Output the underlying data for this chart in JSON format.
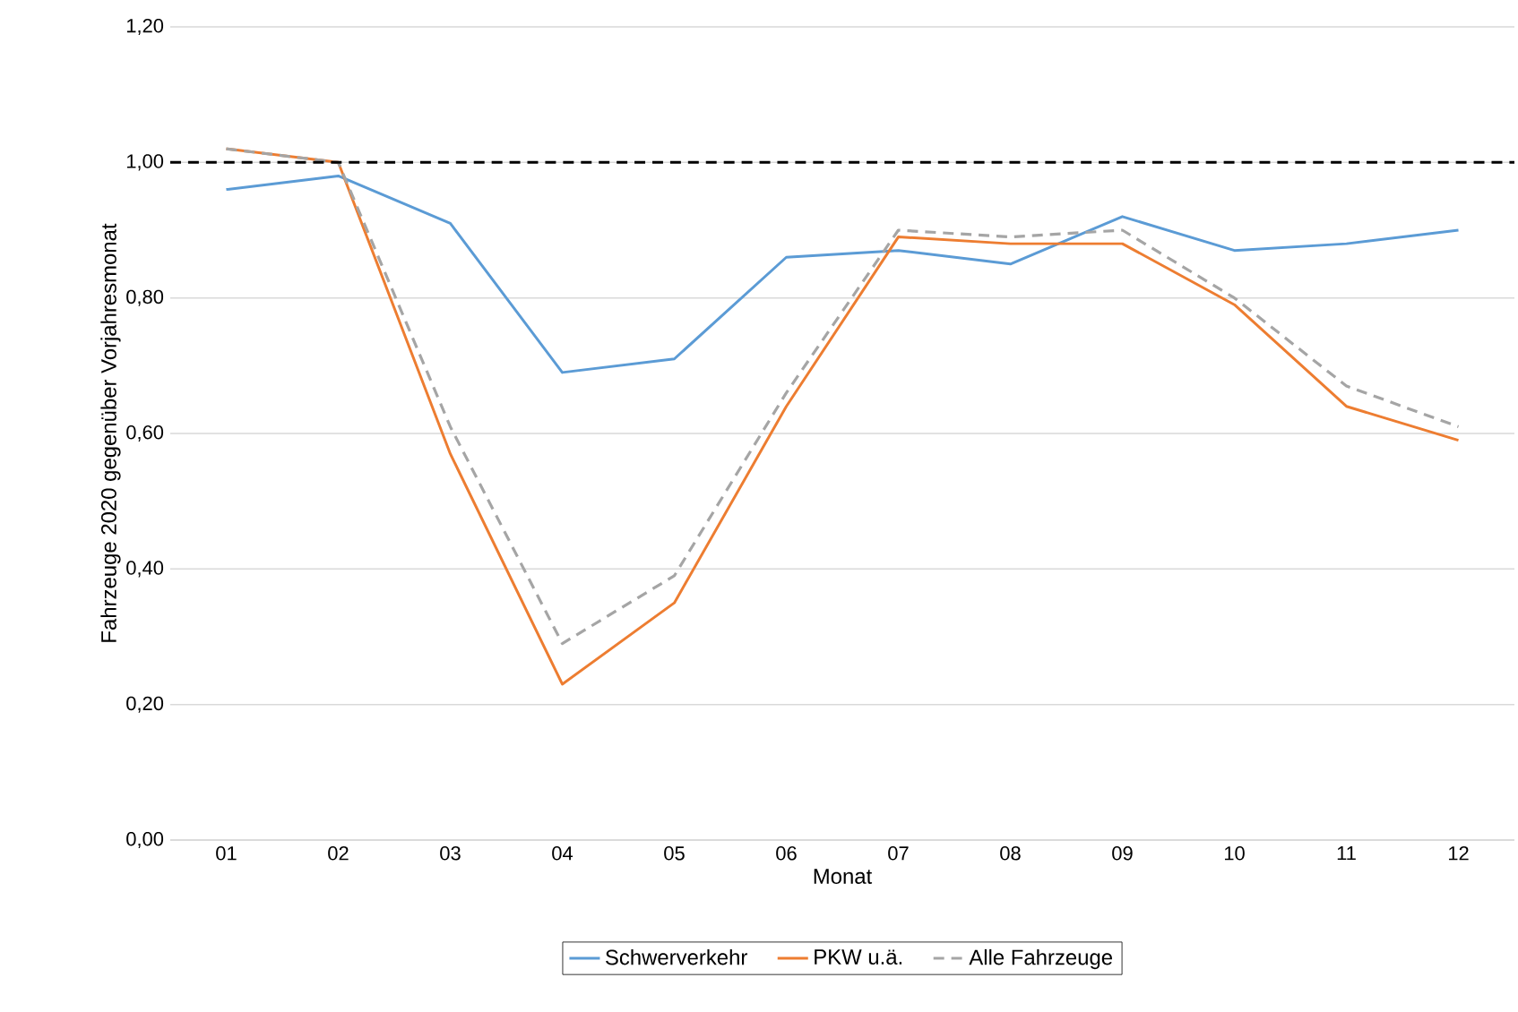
{
  "chart_data": {
    "type": "line",
    "xlabel": "Monat",
    "ylabel": "Fahrzeuge 2020 gegenüber Vorjahresmonat",
    "categories": [
      "01",
      "02",
      "03",
      "04",
      "05",
      "06",
      "07",
      "08",
      "09",
      "10",
      "11",
      "12"
    ],
    "series": [
      {
        "name": "Schwerverkehr",
        "color": "#5b9bd5",
        "line_style": "solid",
        "values": [
          0.96,
          0.98,
          0.91,
          0.69,
          0.71,
          0.86,
          0.87,
          0.85,
          0.92,
          0.87,
          0.88,
          0.9
        ]
      },
      {
        "name": "PKW u.ä.",
        "color": "#ed7d31",
        "line_style": "solid",
        "values": [
          1.02,
          1.0,
          0.57,
          0.23,
          0.35,
          0.64,
          0.89,
          0.88,
          0.88,
          0.79,
          0.64,
          0.59
        ]
      },
      {
        "name": "Alle Fahrzeuge",
        "color": "#a5a5a5",
        "line_style": "dashed",
        "values": [
          1.02,
          1.0,
          0.61,
          0.29,
          0.39,
          0.66,
          0.9,
          0.89,
          0.9,
          0.8,
          0.67,
          0.61
        ]
      }
    ],
    "ylim": [
      0,
      1.2
    ],
    "yticks": [
      {
        "value": 0,
        "label": "0,00"
      },
      {
        "value": 0.2,
        "label": "0,20"
      },
      {
        "value": 0.4,
        "label": "0,40"
      },
      {
        "value": 0.6,
        "label": "0,60"
      },
      {
        "value": 0.8,
        "label": "0,80"
      },
      {
        "value": 1.0,
        "label": "1,00"
      },
      {
        "value": 1.2,
        "label": "1,20"
      }
    ],
    "ref_lines": [
      {
        "axis": "y",
        "value": 1.0,
        "color": "#000000",
        "line_style": "dashed"
      }
    ],
    "grid": "y",
    "legend": "bottom",
    "marker": "none"
  }
}
